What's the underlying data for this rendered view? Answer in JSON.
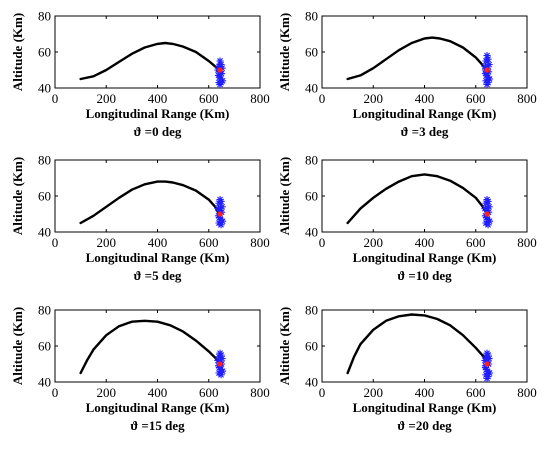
{
  "chart_data": [
    {
      "type": "line",
      "subtitle": "ϑ =0 deg",
      "xlabel": "Longitudinal Range (Km)",
      "ylabel": "Altitude (Km)",
      "xlim": [
        0,
        800
      ],
      "ylim": [
        40,
        80
      ],
      "xticks": [
        0,
        200,
        400,
        600,
        800
      ],
      "yticks": [
        40,
        60,
        80
      ],
      "series": [
        {
          "x": [
            100,
            150,
            200,
            250,
            300,
            350,
            400,
            430,
            460,
            500,
            550,
            600,
            625,
            640
          ],
          "y": [
            45,
            46.5,
            50,
            54.5,
            59,
            62.5,
            64.5,
            65,
            64.5,
            63,
            60,
            55,
            52,
            50
          ]
        }
      ],
      "scatter": {
        "x": [
          644,
          648,
          640,
          652,
          636,
          645,
          650,
          638,
          642,
          646,
          654,
          640,
          648,
          644,
          638
        ],
        "y": [
          55,
          53,
          52,
          51,
          50,
          49,
          48,
          47,
          46,
          45,
          44,
          43,
          43,
          42,
          51
        ]
      },
      "target": {
        "x": 644,
        "y": 50
      },
      "grid": false
    },
    {
      "type": "line",
      "subtitle": "ϑ =3 deg",
      "xlabel": "Longitudinal Range (Km)",
      "ylabel": "Altitude (Km)",
      "xlim": [
        0,
        800
      ],
      "ylim": [
        40,
        80
      ],
      "xticks": [
        0,
        200,
        400,
        600,
        800
      ],
      "yticks": [
        40,
        60,
        80
      ],
      "series": [
        {
          "x": [
            100,
            150,
            200,
            250,
            300,
            350,
            400,
            430,
            460,
            500,
            550,
            600,
            625,
            640
          ],
          "y": [
            45,
            47,
            51,
            56,
            61,
            65,
            67.5,
            68,
            67.5,
            66,
            62.5,
            57,
            53,
            50
          ]
        }
      ],
      "scatter": {
        "x": [
          644,
          648,
          640,
          652,
          636,
          645,
          650,
          638,
          642,
          646,
          654,
          640,
          648,
          644,
          638
        ],
        "y": [
          58,
          56,
          55,
          53,
          52,
          51,
          49,
          48,
          47,
          46,
          45,
          44,
          43,
          42,
          50
        ]
      },
      "target": {
        "x": 644,
        "y": 50
      },
      "grid": false
    },
    {
      "type": "line",
      "subtitle": "ϑ =5 deg",
      "xlabel": "Longitudinal Range (Km)",
      "ylabel": "Altitude (Km)",
      "xlim": [
        0,
        800
      ],
      "ylim": [
        40,
        80
      ],
      "xticks": [
        0,
        200,
        400,
        600,
        800
      ],
      "yticks": [
        40,
        60,
        80
      ],
      "series": [
        {
          "x": [
            100,
            150,
            200,
            250,
            300,
            350,
            400,
            430,
            460,
            500,
            550,
            600,
            625,
            640
          ],
          "y": [
            45,
            49,
            54,
            59,
            63.5,
            66.5,
            68,
            68,
            67.5,
            66,
            63,
            58,
            54,
            50
          ]
        }
      ],
      "scatter": {
        "x": [
          644,
          648,
          640,
          652,
          636,
          645,
          650,
          638,
          642,
          646,
          654,
          640,
          648,
          644
        ],
        "y": [
          58,
          57,
          56,
          54,
          53,
          52,
          51,
          49,
          48,
          47,
          46,
          45,
          44,
          50
        ]
      },
      "target": {
        "x": 644,
        "y": 50
      },
      "grid": false
    },
    {
      "type": "line",
      "subtitle": "ϑ =10 deg",
      "xlabel": "Longitudinal Range (Km)",
      "ylabel": "Altitude (Km)",
      "xlim": [
        0,
        800
      ],
      "ylim": [
        40,
        80
      ],
      "xticks": [
        0,
        200,
        400,
        600,
        800
      ],
      "yticks": [
        40,
        60,
        80
      ],
      "series": [
        {
          "x": [
            100,
            150,
            200,
            250,
            300,
            350,
            400,
            450,
            500,
            550,
            600,
            625,
            640
          ],
          "y": [
            45,
            53,
            59,
            64,
            68,
            71,
            72,
            71,
            68.5,
            64.5,
            59,
            54.5,
            51
          ]
        }
      ],
      "scatter": {
        "x": [
          644,
          648,
          640,
          652,
          636,
          645,
          650,
          638,
          642,
          646,
          654,
          640,
          648,
          644
        ],
        "y": [
          58,
          57,
          56,
          54,
          53,
          52,
          51,
          49,
          48,
          47,
          46,
          45,
          44,
          50
        ]
      },
      "target": {
        "x": 644,
        "y": 50
      },
      "grid": false
    },
    {
      "type": "line",
      "subtitle": "ϑ =15 deg",
      "xlabel": "Longitudinal Range (Km)",
      "ylabel": "Altitude (Km)",
      "xlim": [
        0,
        800
      ],
      "ylim": [
        40,
        80
      ],
      "xticks": [
        0,
        200,
        400,
        600,
        800
      ],
      "yticks": [
        40,
        60,
        80
      ],
      "series": [
        {
          "x": [
            100,
            125,
            150,
            200,
            250,
            300,
            350,
            400,
            450,
            500,
            550,
            600,
            625,
            640
          ],
          "y": [
            45,
            52,
            58,
            66,
            71,
            73.5,
            74,
            73.5,
            71.5,
            68,
            63,
            57,
            53.5,
            51
          ]
        }
      ],
      "scatter": {
        "x": [
          644,
          648,
          640,
          652,
          636,
          645,
          650,
          638,
          642,
          646,
          654,
          640,
          648,
          644
        ],
        "y": [
          56,
          55,
          54,
          53,
          52,
          51,
          50,
          49,
          48,
          47,
          46,
          45,
          44,
          50
        ]
      },
      "target": {
        "x": 644,
        "y": 50
      },
      "grid": false
    },
    {
      "type": "line",
      "subtitle": "ϑ =20 deg",
      "xlabel": "Longitudinal Range (Km)",
      "ylabel": "Altitude (Km)",
      "xlim": [
        0,
        800
      ],
      "ylim": [
        40,
        80
      ],
      "xticks": [
        0,
        200,
        400,
        600,
        800
      ],
      "yticks": [
        40,
        60,
        80
      ],
      "series": [
        {
          "x": [
            100,
            125,
            150,
            200,
            250,
            300,
            350,
            400,
            450,
            500,
            550,
            600,
            625,
            640
          ],
          "y": [
            45,
            54,
            61,
            69,
            74,
            76.5,
            77.5,
            77,
            75,
            71.5,
            66,
            59,
            55,
            52
          ]
        }
      ],
      "scatter": {
        "x": [
          644,
          648,
          640,
          652,
          636,
          645,
          650,
          638,
          642,
          646,
          654,
          640,
          648,
          644,
          638
        ],
        "y": [
          56,
          55,
          54,
          53,
          52,
          51,
          50,
          48,
          47,
          46,
          45,
          44,
          43,
          42,
          49
        ]
      },
      "target": {
        "x": 644,
        "y": 50
      },
      "grid": false
    }
  ],
  "colors": {
    "curve": "#000000",
    "scatter": "#1f1fff",
    "target": "#ff1f1f"
  }
}
